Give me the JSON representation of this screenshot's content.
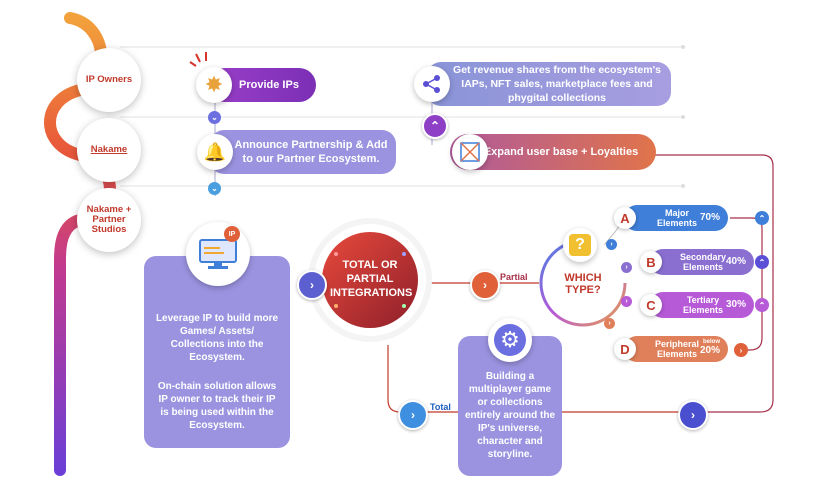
{
  "lanes": {
    "ip_owners": "IP Owners",
    "nakame": "Nakame",
    "nakame_partner": "Nakame + Partner Studios"
  },
  "steps": {
    "provide_ips": "Provide IPs",
    "announce": "Announce Partnership & Add to our Partner Ecosystem.",
    "leverage": "Leverage IP to build more Games/ Assets/ Collections into the Ecosystem.",
    "onchain": "On-chain solution allows IP owner to track their IP is being used within the Ecosystem.",
    "revenue": "Get revenue shares from the ecosystem's IAPs, NFT sales, marketplace fees and phygital collections",
    "expand": "Expand user base + Loyalties",
    "integrations": "TOTAL OR PARTIAL INTEGRATIONS",
    "which_type": "WHICH TYPE?",
    "building": "Building a multiplayer game or collections entirely around the IP's universe, character and storyline.",
    "ip_badge": "IP"
  },
  "branches": {
    "partial": "Partial",
    "total": "Total"
  },
  "types": [
    {
      "letter": "A",
      "name": "Major Elements",
      "pct": "70%",
      "color": "#3f7fd9"
    },
    {
      "letter": "B",
      "name": "Secondary Elements",
      "pct": "40%",
      "color": "#8a6fd1"
    },
    {
      "letter": "C",
      "name": "Tertiary Elements",
      "pct": "30%",
      "color": "#b75ad8"
    },
    {
      "letter": "D",
      "name": "Peripheral Elements",
      "pct_prefix": "below",
      "pct": "20%",
      "color": "#e0805a"
    }
  ],
  "colors": {
    "blue": "#4a7fe0",
    "lavender": "#9b93e0",
    "purple": "#8d3fc6",
    "orange": "#e0603a",
    "red": "#d9342b",
    "dark_red": "#9c2a2a"
  }
}
